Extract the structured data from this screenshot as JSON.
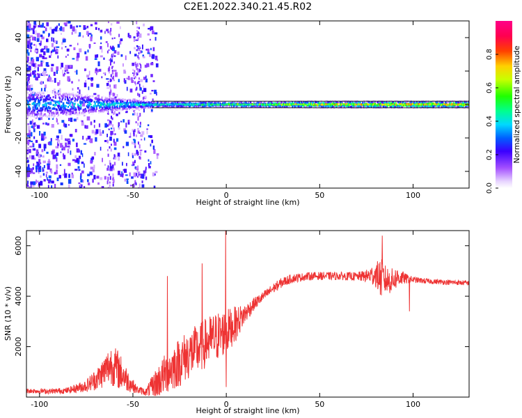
{
  "title": "C2E1.2022.340.21.45.R02",
  "colors": {
    "snr_line": "#ee3333",
    "frame": "#000000"
  },
  "chart_data": [
    {
      "type": "heatmap",
      "name": "spectrogram",
      "xlabel": "Height of straight line (km)",
      "ylabel": "Frequency (Hz)",
      "xlim": [
        -107,
        130
      ],
      "ylim": [
        -50,
        50
      ],
      "xticks": [
        -100,
        -50,
        0,
        50,
        100
      ],
      "yticks": [
        -40,
        -20,
        0,
        20,
        40
      ],
      "colorbar": {
        "label": "Normalized spectral amplitude",
        "range": [
          0,
          1
        ],
        "ticks": [
          "0.0",
          "0.2",
          "0.4",
          "0.6",
          "0.8"
        ],
        "colormap": "rainbow (white-violet-blue-cyan-green-yellow-red-magenta)"
      },
      "description_values": {
        "dominant_frequency_hz": 0,
        "band_halfwidth_hz_at_x": [
          [
            -90,
            8
          ],
          [
            -60,
            4
          ],
          [
            -40,
            2
          ],
          [
            0,
            1.5
          ],
          [
            50,
            2
          ],
          [
            100,
            2
          ],
          [
            130,
            2
          ]
        ],
        "peak_amplitude_at_x": [
          [
            -90,
            0.45
          ],
          [
            -60,
            0.5
          ],
          [
            -30,
            0.55
          ],
          [
            0,
            0.7
          ],
          [
            50,
            0.85
          ],
          [
            100,
            0.9
          ],
          [
            130,
            0.9
          ]
        ]
      }
    },
    {
      "type": "line",
      "name": "snr",
      "xlabel": "Height of straight line (km)",
      "ylabel": "SNR (10 * v/v)",
      "xlim": [
        -107,
        130
      ],
      "ylim": [
        0,
        6600
      ],
      "xticks": [
        -100,
        -50,
        0,
        50,
        100
      ],
      "yticks": [
        2000,
        4000,
        6000
      ],
      "envelope": {
        "x": [
          -107,
          -95,
          -85,
          -75,
          -68,
          -62,
          -58,
          -52,
          -48,
          -43,
          -38,
          -33,
          -30,
          -25,
          -20,
          -15,
          -10,
          -5,
          0,
          5,
          10,
          15,
          20,
          25,
          30,
          35,
          40,
          45,
          50,
          60,
          70,
          75,
          80,
          83,
          85,
          88,
          92,
          96,
          100,
          110,
          120,
          130
        ],
        "base": [
          250,
          230,
          260,
          450,
          800,
          1300,
          1100,
          600,
          300,
          200,
          500,
          900,
          1100,
          1400,
          1700,
          1900,
          2200,
          2400,
          2600,
          2900,
          3300,
          3700,
          4000,
          4300,
          4550,
          4700,
          4750,
          4800,
          4800,
          4800,
          4780,
          4800,
          4850,
          4700,
          4650,
          4600,
          4750,
          4700,
          4650,
          4580,
          4550,
          4520
        ],
        "amp": [
          100,
          100,
          120,
          250,
          500,
          800,
          800,
          400,
          150,
          150,
          600,
          800,
          900,
          1000,
          1000,
          1000,
          1000,
          1000,
          900,
          700,
          400,
          250,
          200,
          200,
          200,
          180,
          160,
          160,
          160,
          160,
          170,
          250,
          500,
          800,
          600,
          500,
          400,
          200,
          120,
          100,
          100,
          100
        ]
      },
      "spikes": [
        {
          "x": -31.5,
          "y": 4800
        },
        {
          "x": -13.0,
          "y": 5300
        },
        {
          "x": -0.3,
          "y": 6600
        },
        {
          "x": 83.5,
          "y": 6400
        },
        {
          "x": -0.1,
          "y": 400
        },
        {
          "x": 98.0,
          "y": 3400
        }
      ]
    }
  ]
}
